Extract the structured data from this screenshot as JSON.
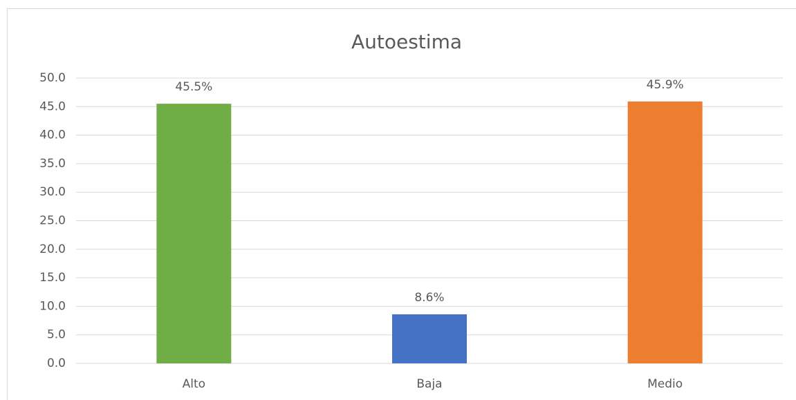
{
  "chart_data": {
    "type": "bar",
    "title": "Autoestima",
    "categories": [
      "Alto",
      "Baja",
      "Medio"
    ],
    "values": [
      45.5,
      8.6,
      45.9
    ],
    "value_labels": [
      "45.5%",
      "8.6%",
      "45.9%"
    ],
    "colors": [
      "#70ad47",
      "#4472c4",
      "#ed7d31"
    ],
    "ylim": [
      0,
      50
    ],
    "yticks": [
      {
        "value": 0,
        "label": "0.0"
      },
      {
        "value": 5,
        "label": "5.0"
      },
      {
        "value": 10,
        "label": "10.0"
      },
      {
        "value": 15,
        "label": "15.0"
      },
      {
        "value": 20,
        "label": "20.0"
      },
      {
        "value": 25,
        "label": "25.0"
      },
      {
        "value": 30,
        "label": "30.0"
      },
      {
        "value": 35,
        "label": "35.0"
      },
      {
        "value": 40,
        "label": "40.0"
      },
      {
        "value": 45,
        "label": "45.0"
      },
      {
        "value": 50,
        "label": "50.0"
      }
    ],
    "grid": true
  }
}
